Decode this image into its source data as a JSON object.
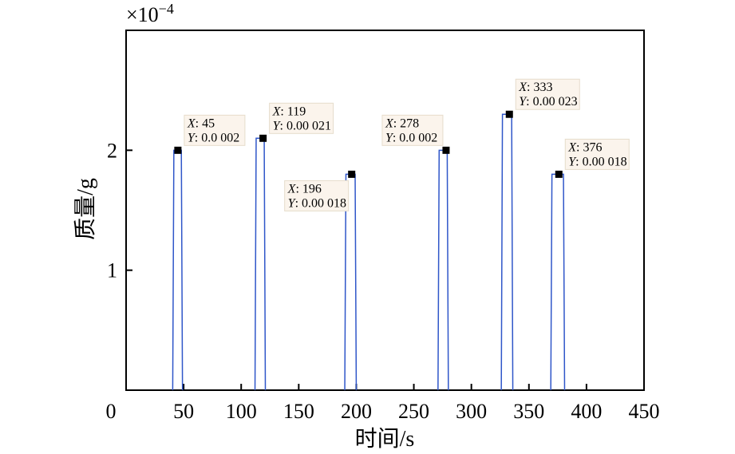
{
  "chart_data": {
    "type": "line",
    "ylabel": "质量/g",
    "xlabel": "时间/s",
    "y_multiplier": "×10",
    "y_exponent": "−4",
    "xlim": [
      0,
      450
    ],
    "ylim": [
      0,
      3
    ],
    "x_ticks": [
      0,
      50,
      100,
      150,
      200,
      250,
      300,
      350,
      400,
      450
    ],
    "x_tick_labels": [
      "0",
      "50",
      "100",
      "150",
      "200",
      "250",
      "300",
      "350",
      "400",
      "450"
    ],
    "y_ticks": [
      1,
      2
    ],
    "y_tick_labels": [
      "1",
      "2"
    ],
    "grid": false,
    "line_color": "#2f56c9",
    "marker_color": "#000000",
    "series": [
      {
        "pulses": [
          {
            "start": 40.5,
            "end": 49,
            "peak_x": 45,
            "peak_y": 2.0
          },
          {
            "start": 112,
            "end": 121,
            "peak_x": 119,
            "peak_y": 2.1
          },
          {
            "start": 190,
            "end": 200,
            "peak_x": 196,
            "peak_y": 1.8
          },
          {
            "start": 271,
            "end": 280,
            "peak_x": 278,
            "peak_y": 2.0
          },
          {
            "start": 326,
            "end": 336,
            "peak_x": 333,
            "peak_y": 2.3
          },
          {
            "start": 369,
            "end": 381,
            "peak_x": 376,
            "peak_y": 1.8
          }
        ]
      }
    ],
    "annotations": [
      {
        "x_label": "X",
        "x_value": ": 45",
        "y_label": "Y",
        "y_value": ": 0.0 002",
        "placement": "upper-right"
      },
      {
        "x_label": "X",
        "x_value": ": 119",
        "y_label": "Y",
        "y_value": ": 0.00 021",
        "placement": "upper-right"
      },
      {
        "x_label": "X",
        "x_value": ": 196",
        "y_label": "Y",
        "y_value": ": 0.00 018",
        "placement": "lower-left"
      },
      {
        "x_label": "X",
        "x_value": ": 278",
        "y_label": "Y",
        "y_value": ": 0.0 002",
        "placement": "upper-left"
      },
      {
        "x_label": "X",
        "x_value": ": 333",
        "y_label": "Y",
        "y_value": ": 0.00 023",
        "placement": "upper-right"
      },
      {
        "x_label": "X",
        "x_value": ": 376",
        "y_label": "Y",
        "y_value": ": 0.00 018",
        "placement": "upper-right"
      }
    ]
  }
}
